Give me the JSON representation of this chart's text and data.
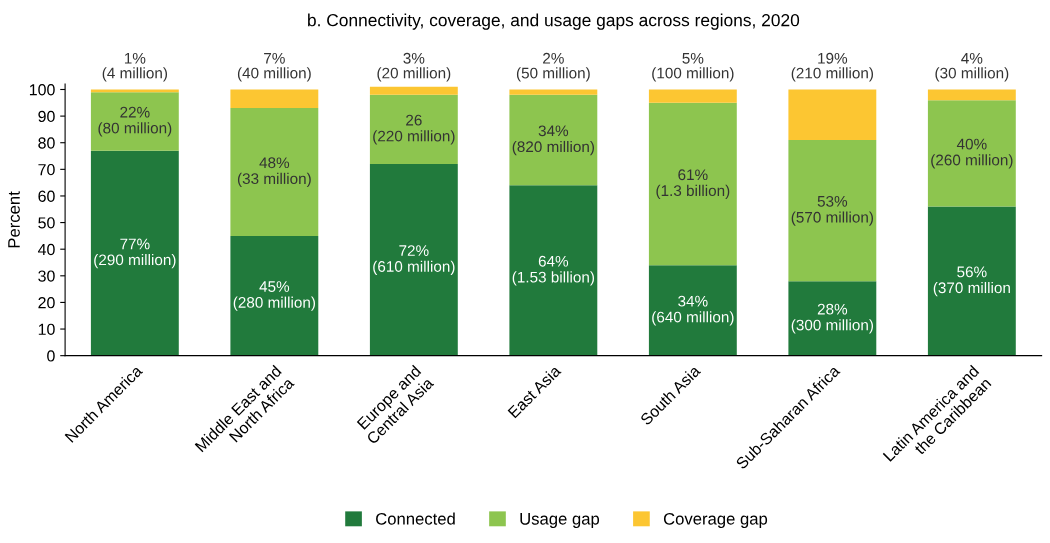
{
  "chart_data": {
    "type": "bar",
    "title": "b. Connectivity, coverage, and usage gaps across regions, 2020",
    "ylabel": "Percent",
    "categories": [
      "North America",
      "Middle East and\nNorth Africa",
      "Europe and\nCentral Asia",
      "East Asia",
      "South Asia",
      "Sub-Saharan Africa",
      "Latin America and\nthe Caribbean"
    ],
    "stacked": true,
    "ylim": [
      0,
      102
    ],
    "yticks": [
      0,
      10,
      20,
      30,
      40,
      50,
      60,
      70,
      80,
      90,
      100
    ],
    "grid": false,
    "legend": "bottom",
    "series": [
      {
        "name": "Connected",
        "color": "#217a3c",
        "values": [
          77,
          45,
          72,
          64,
          34,
          28,
          56
        ],
        "value_labels": [
          "77%\n(290 million)",
          "45%\n(280 million)",
          "72%\n(610 million)",
          "64%\n(1.53 billion)",
          "34%\n(640 million)",
          "28%\n(300 million)",
          "56%\n(370 million"
        ]
      },
      {
        "name": "Usage gap",
        "color": "#8dc54f",
        "values": [
          22,
          48,
          26,
          34,
          61,
          53,
          40
        ],
        "value_labels": [
          "22%\n(80 million)",
          "48%\n(33 million)",
          "26\n(220 million)",
          "34%\n(820 million)",
          "61%\n(1.3 billion)",
          "53%\n(570 million)",
          "40%\n(260 million)"
        ]
      },
      {
        "name": "Coverage gap",
        "color": "#fcc632",
        "values": [
          1,
          7,
          3,
          2,
          5,
          19,
          4
        ],
        "value_labels": [
          "1%\n(4 million)",
          "7%\n(40 million)",
          "3%\n(20 million)",
          "2%\n(50 million)",
          "5%\n(100 million)",
          "19%\n(210 million)",
          "4%\n(30 million)"
        ]
      }
    ]
  }
}
